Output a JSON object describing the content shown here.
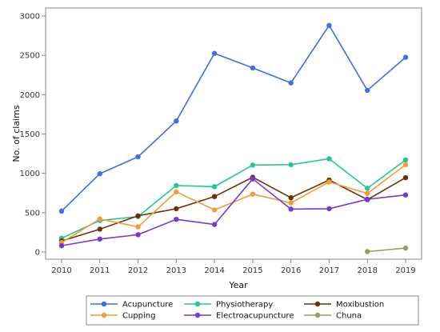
{
  "chart_data": {
    "type": "line",
    "title": "",
    "xlabel": "Year",
    "ylabel": "No. of claims",
    "x": [
      2010,
      2011,
      2012,
      2013,
      2014,
      2015,
      2016,
      2017,
      2018,
      2019
    ],
    "ylim": [
      0,
      3000
    ],
    "yticks": [
      0,
      500,
      1000,
      1500,
      2000,
      2500,
      3000
    ],
    "grid": false,
    "legend_position": "bottom",
    "series": [
      {
        "name": "Acupuncture",
        "color": "#3d6fe8",
        "values": [
          520,
          995,
          1210,
          1665,
          2525,
          2340,
          2150,
          2880,
          2055,
          2475
        ]
      },
      {
        "name": "Physiotherapy",
        "color": "#21c79a",
        "values": [
          175,
          400,
          450,
          845,
          830,
          1105,
          1110,
          1185,
          810,
          1170
        ]
      },
      {
        "name": "Moxibustion",
        "color": "#6b3109",
        "values": [
          140,
          290,
          460,
          550,
          705,
          950,
          690,
          915,
          665,
          945
        ]
      },
      {
        "name": "Cupping",
        "color": "#f79a35",
        "values": [
          120,
          420,
          320,
          765,
          535,
          735,
          625,
          890,
          745,
          1110
        ]
      },
      {
        "name": "Electroacupuncture",
        "color": "#7438d4",
        "values": [
          80,
          165,
          220,
          415,
          350,
          930,
          545,
          550,
          670,
          725
        ]
      },
      {
        "name": "Chuna",
        "color": "#8ea06a",
        "values": [
          null,
          null,
          null,
          null,
          null,
          null,
          null,
          null,
          5,
          50
        ]
      }
    ]
  }
}
